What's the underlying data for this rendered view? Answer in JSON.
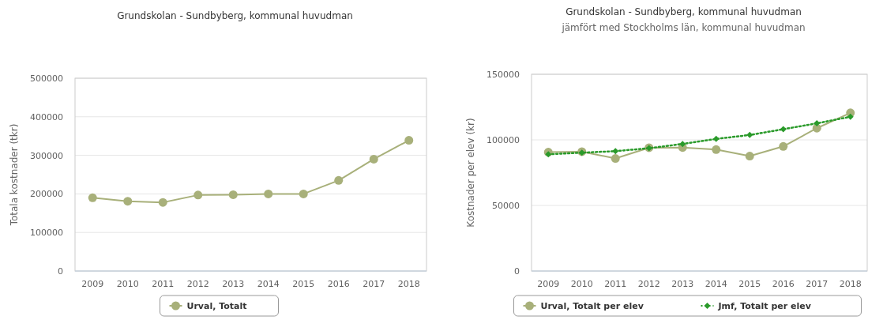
{
  "chart_data": [
    {
      "type": "line",
      "title": "Grundskolan - Sundbyberg, kommunal huvudman",
      "ylabel": "Totala kostnader (tkr)",
      "categories": [
        "2009",
        "2010",
        "2011",
        "2012",
        "2013",
        "2014",
        "2015",
        "2016",
        "2017",
        "2018"
      ],
      "ylim": [
        0,
        500000
      ],
      "yticks": [
        0,
        100000,
        200000,
        300000,
        400000,
        500000
      ],
      "grid": "y",
      "legend": "bottom",
      "series": [
        {
          "name": "Urval, Totalt",
          "color": "#a8b07a",
          "marker": "circle",
          "line_style": "solid",
          "values": [
            190000,
            181000,
            178000,
            197000,
            198000,
            200000,
            200000,
            235000,
            290000,
            339000
          ]
        }
      ]
    },
    {
      "type": "line",
      "title": "Grundskolan - Sundbyberg, kommunal huvudman",
      "subtitle": "jämfört med Stockholms län, kommunal huvudman",
      "ylabel": "Kostnader per elev (kr)",
      "categories": [
        "2009",
        "2010",
        "2011",
        "2012",
        "2013",
        "2014",
        "2015",
        "2016",
        "2017",
        "2018"
      ],
      "ylim": [
        0,
        150000
      ],
      "yticks": [
        0,
        50000,
        100000,
        150000
      ],
      "grid": "y",
      "legend": "bottom",
      "series": [
        {
          "name": "Urval, Totalt per elev",
          "color": "#a8b07a",
          "marker": "circle",
          "line_style": "solid",
          "values": [
            90600,
            91000,
            85800,
            94000,
            94200,
            92600,
            87600,
            95000,
            108900,
            120600
          ]
        },
        {
          "name": "Jmf, Totalt per elev",
          "color": "#2a9a2a",
          "marker": "diamond",
          "line_style": "dotted",
          "values": [
            89000,
            90200,
            91400,
            93600,
            96900,
            100700,
            103700,
            108100,
            112600,
            117600
          ]
        }
      ]
    }
  ]
}
